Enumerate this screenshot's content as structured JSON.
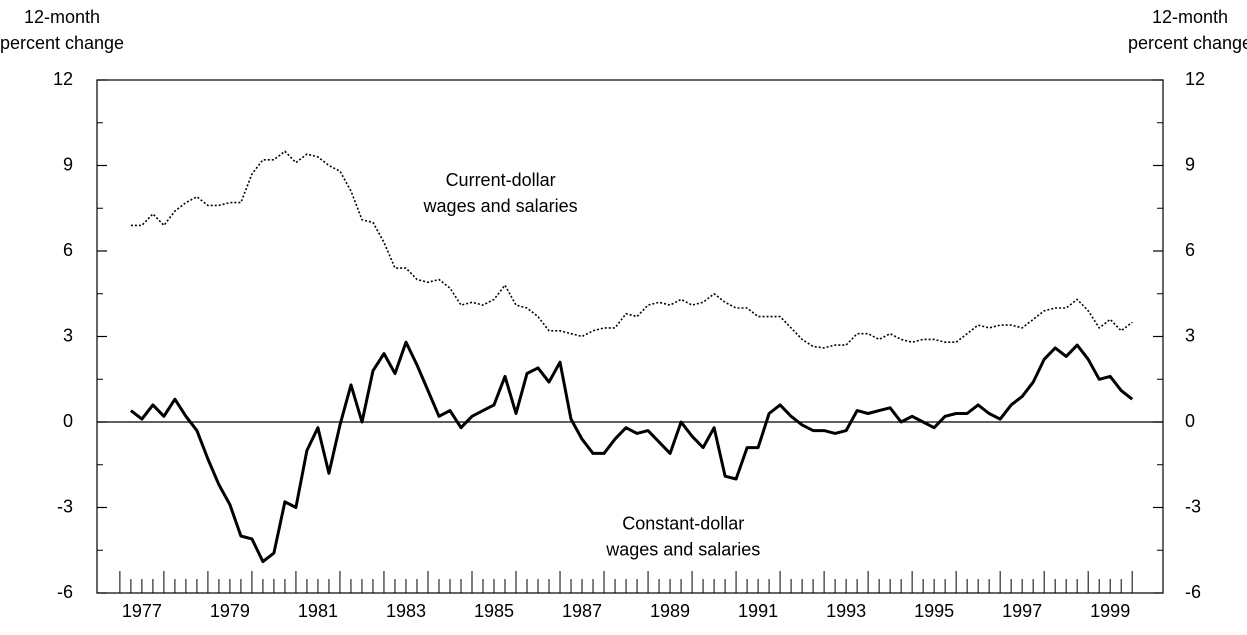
{
  "chart_data": {
    "type": "line",
    "y_axis_label": [
      "12-month",
      "percent change"
    ],
    "y2_axis_label": [
      "12-month",
      "percent change"
    ],
    "annotations": [
      {
        "lines": [
          "Current-dollar",
          "wages and salaries"
        ],
        "x": 1985.65,
        "y": 8.45
      },
      {
        "lines": [
          "Constant-dollar",
          "wages and salaries"
        ],
        "x": 1989.8,
        "y": -3.6
      }
    ],
    "x": [
      1977.25,
      1977.5,
      1977.75,
      1978,
      1978.25,
      1978.5,
      1978.75,
      1979,
      1979.25,
      1979.5,
      1979.75,
      1980,
      1980.25,
      1980.5,
      1980.75,
      1981,
      1981.25,
      1981.5,
      1981.75,
      1982,
      1982.25,
      1982.5,
      1982.75,
      1983,
      1983.25,
      1983.5,
      1983.75,
      1984,
      1984.25,
      1984.5,
      1984.75,
      1985,
      1985.25,
      1985.5,
      1985.75,
      1986,
      1986.25,
      1986.5,
      1986.75,
      1987,
      1987.25,
      1987.5,
      1987.75,
      1988,
      1988.25,
      1988.5,
      1988.75,
      1989,
      1989.25,
      1989.5,
      1989.75,
      1990,
      1990.25,
      1990.5,
      1990.75,
      1991,
      1991.25,
      1991.5,
      1991.75,
      1992,
      1992.25,
      1992.5,
      1992.75,
      1993,
      1993.25,
      1993.5,
      1993.75,
      1994,
      1994.25,
      1994.5,
      1994.75,
      1995,
      1995.25,
      1995.5,
      1995.75,
      1996,
      1996.25,
      1996.5,
      1996.75,
      1997,
      1997.25,
      1997.5,
      1997.75,
      1998,
      1998.25,
      1998.5,
      1998.75,
      1999,
      1999.25,
      1999.5,
      1999.75,
      2000
    ],
    "series": [
      {
        "name": "Current-dollar wages and salaries",
        "color": "#000000",
        "line_style": "dotted",
        "values": [
          6.9,
          6.9,
          7.3,
          6.9,
          7.4,
          7.7,
          7.9,
          7.6,
          7.6,
          7.7,
          7.7,
          8.7,
          9.2,
          9.2,
          9.5,
          9.1,
          9.4,
          9.3,
          9.0,
          8.8,
          8.1,
          7.1,
          7.0,
          6.3,
          5.4,
          5.4,
          5.0,
          4.9,
          5.0,
          4.7,
          4.1,
          4.2,
          4.1,
          4.3,
          4.8,
          4.1,
          4.0,
          3.7,
          3.2,
          3.2,
          3.1,
          3.0,
          3.2,
          3.3,
          3.3,
          3.8,
          3.7,
          4.1,
          4.2,
          4.1,
          4.3,
          4.1,
          4.2,
          4.5,
          4.2,
          4.0,
          4.0,
          3.7,
          3.7,
          3.7,
          3.3,
          2.9,
          2.65,
          2.6,
          2.7,
          2.7,
          3.1,
          3.1,
          2.9,
          3.1,
          2.9,
          2.8,
          2.9,
          2.9,
          2.8,
          2.8,
          3.1,
          3.4,
          3.3,
          3.4,
          3.4,
          3.3,
          3.6,
          3.9,
          4.0,
          4.0,
          4.3,
          3.9,
          3.3,
          3.6,
          3.2,
          3.5
        ]
      },
      {
        "name": "Constant-dollar wages and salaries",
        "color": "#000000",
        "line_style": "solid",
        "values": [
          0.4,
          0.1,
          0.6,
          0.2,
          0.8,
          0.2,
          -0.3,
          -1.3,
          -2.2,
          -2.9,
          -4.0,
          -4.1,
          -4.9,
          -4.6,
          -2.8,
          -3.0,
          -1.0,
          -0.2,
          -1.8,
          -0.1,
          1.3,
          0.0,
          1.8,
          2.4,
          1.7,
          2.8,
          2.0,
          1.1,
          0.2,
          0.4,
          -0.2,
          0.2,
          0.4,
          0.6,
          1.6,
          0.3,
          1.7,
          1.9,
          1.4,
          2.1,
          0.1,
          -0.6,
          -1.1,
          -1.1,
          -0.6,
          -0.2,
          -0.4,
          -0.3,
          -0.7,
          -1.1,
          0.0,
          -0.5,
          -0.9,
          -0.2,
          -1.9,
          -2.0,
          -0.9,
          -0.9,
          0.3,
          0.6,
          0.2,
          -0.1,
          -0.3,
          -0.3,
          -0.4,
          -0.3,
          0.4,
          0.3,
          0.4,
          0.5,
          0.0,
          0.2,
          0.0,
          -0.2,
          0.2,
          0.3,
          0.3,
          0.6,
          0.3,
          0.1,
          0.6,
          0.9,
          1.4,
          2.2,
          2.6,
          2.3,
          2.7,
          2.2,
          1.5,
          1.6,
          1.1,
          0.8
        ]
      }
    ],
    "xlim": [
      1976.48,
      2000.7
    ],
    "xticks": [
      {
        "value": 1977.5,
        "label": "1977"
      },
      {
        "value": 1979.5,
        "label": "1979"
      },
      {
        "value": 1981.5,
        "label": "1981"
      },
      {
        "value": 1983.5,
        "label": "1983"
      },
      {
        "value": 1985.5,
        "label": "1985"
      },
      {
        "value": 1987.5,
        "label": "1987"
      },
      {
        "value": 1989.5,
        "label": "1989"
      },
      {
        "value": 1991.5,
        "label": "1991"
      },
      {
        "value": 1993.5,
        "label": "1993"
      },
      {
        "value": 1995.5,
        "label": "1995"
      },
      {
        "value": 1997.5,
        "label": "1997"
      },
      {
        "value": 1999.5,
        "label": "1999"
      }
    ],
    "x_year_ticks": [
      1977,
      1978,
      1979,
      1980,
      1981,
      1982,
      1983,
      1984,
      1985,
      1986,
      1987,
      1988,
      1989,
      1990,
      1991,
      1992,
      1993,
      1994,
      1995,
      1996,
      1997,
      1998,
      1999,
      2000
    ],
    "ylim": [
      -6,
      12
    ],
    "yticks": [
      -6,
      -3,
      0,
      3,
      6,
      9,
      12
    ],
    "y2lim": [
      -6,
      12
    ],
    "y2ticks": [
      -6,
      -3,
      0,
      3,
      6,
      9,
      12
    ],
    "zero_line": true
  }
}
